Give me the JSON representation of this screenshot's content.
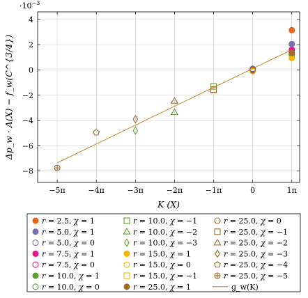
{
  "chart_data": {
    "type": "scatter",
    "xlabel": "K (X)",
    "ylabel": "Δp_w · A(X) − f_w(C^{3/4})",
    "y_exponent_label": "·10",
    "y_exponent_power": "−3",
    "xlim": [
      -5.5,
      1.2
    ],
    "ylim": [
      -8.9,
      4.6
    ],
    "x_ticks": [
      {
        "value": -5,
        "label": "−5π"
      },
      {
        "value": -4,
        "label": "−4π"
      },
      {
        "value": -3,
        "label": "−3π"
      },
      {
        "value": -2,
        "label": "−2π"
      },
      {
        "value": -1,
        "label": "−1π"
      },
      {
        "value": 0,
        "label": "0"
      },
      {
        "value": 1,
        "label": "1π"
      }
    ],
    "y_ticks": [
      {
        "value": -8,
        "label": "−8"
      },
      {
        "value": -6,
        "label": "−6"
      },
      {
        "value": -4,
        "label": "−4"
      },
      {
        "value": -2,
        "label": "−2"
      },
      {
        "value": 0,
        "label": "0"
      },
      {
        "value": 2,
        "label": "2"
      },
      {
        "value": 4,
        "label": "4"
      }
    ],
    "grid": true,
    "legend_position": "below",
    "line": {
      "name": "g_w(K)",
      "x": [
        -5,
        1
      ],
      "y": [
        -7.35,
        1.6
      ],
      "color": "#d08a2a"
    },
    "series": [
      {
        "name": "r = 2.5, χ = 1",
        "marker": "circle",
        "filled": true,
        "color": "#e8651a",
        "x": [
          1
        ],
        "y": [
          3.15
        ]
      },
      {
        "name": "r = 5.0, χ = 1",
        "marker": "circle",
        "filled": true,
        "color": "#7b6fb5",
        "x": [
          1
        ],
        "y": [
          2.05
        ]
      },
      {
        "name": "r = 5.0, χ = 0",
        "marker": "circle",
        "filled": false,
        "color": "#7b6fb5",
        "x": [
          0
        ],
        "y": [
          0.1
        ]
      },
      {
        "name": "r = 7.5, χ = 1",
        "marker": "circle",
        "filled": true,
        "color": "#e6198a",
        "x": [
          1
        ],
        "y": [
          1.6
        ]
      },
      {
        "name": "r = 7.5, χ = 0",
        "marker": "circle",
        "filled": false,
        "color": "#e6198a",
        "x": [
          0
        ],
        "y": [
          0.0
        ]
      },
      {
        "name": "r = 10.0, χ = 1",
        "marker": "circle",
        "filled": true,
        "color": "#5ea12f",
        "x": [
          1
        ],
        "y": [
          1.2
        ]
      },
      {
        "name": "r = 10.0, χ = 0",
        "marker": "circle",
        "filled": false,
        "color": "#5ea12f",
        "x": [
          0
        ],
        "y": [
          -0.05
        ]
      },
      {
        "name": "r = 10.0, χ = −1",
        "marker": "square",
        "filled": false,
        "color": "#5ea12f",
        "x": [
          -1
        ],
        "y": [
          -1.3
        ]
      },
      {
        "name": "r = 10.0, χ = −2",
        "marker": "triangle",
        "filled": false,
        "color": "#5ea12f",
        "x": [
          -2
        ],
        "y": [
          -3.35
        ]
      },
      {
        "name": "r = 10.0, χ = −3",
        "marker": "diamond",
        "filled": false,
        "color": "#5ea12f",
        "x": [
          -3
        ],
        "y": [
          -4.8
        ]
      },
      {
        "name": "r = 15.0, χ = 1",
        "marker": "circle",
        "filled": true,
        "color": "#f2b800",
        "x": [
          1
        ],
        "y": [
          0.95
        ]
      },
      {
        "name": "r = 15.0, χ = 0",
        "marker": "circle",
        "filled": false,
        "color": "#f2b800",
        "x": [
          0
        ],
        "y": [
          -0.1
        ]
      },
      {
        "name": "r = 15.0, χ = −1",
        "marker": "square",
        "filled": false,
        "color": "#f2b800",
        "x": [
          -1
        ],
        "y": [
          -1.6
        ]
      },
      {
        "name": "r = 25.0, χ = 1",
        "marker": "circle",
        "filled": true,
        "color": "#9c6d2c",
        "x": [
          1
        ],
        "y": [
          1.35
        ]
      },
      {
        "name": "r = 25.0, χ = 0",
        "marker": "circle",
        "filled": false,
        "color": "#9c6d2c",
        "x": [
          0
        ],
        "y": [
          0.05
        ]
      },
      {
        "name": "r = 25.0, χ = −1",
        "marker": "square",
        "filled": false,
        "color": "#9c6d2c",
        "x": [
          -1
        ],
        "y": [
          -1.55
        ]
      },
      {
        "name": "r = 25.0, χ = −2",
        "marker": "triangle",
        "filled": false,
        "color": "#9c6d2c",
        "x": [
          -2
        ],
        "y": [
          -2.45
        ]
      },
      {
        "name": "r = 25.0, χ = −3",
        "marker": "diamond",
        "filled": false,
        "color": "#9c6d2c",
        "x": [
          -3
        ],
        "y": [
          -3.9
        ]
      },
      {
        "name": "r = 25.0, χ = −4",
        "marker": "pentagon",
        "filled": false,
        "color": "#9c6d2c",
        "x": [
          -4
        ],
        "y": [
          -4.95
        ]
      },
      {
        "name": "r = 25.0, χ = −5",
        "marker": "oplus",
        "filled": false,
        "color": "#9c6d2c",
        "x": [
          -5
        ],
        "y": [
          -7.75
        ]
      }
    ],
    "legend": [
      {
        "ref": 0,
        "r": "2.5",
        "chi": "1"
      },
      {
        "ref": 1,
        "r": "5.0",
        "chi": "1"
      },
      {
        "ref": 2,
        "r": "5.0",
        "chi": "0"
      },
      {
        "ref": 3,
        "r": "7.5",
        "chi": "1"
      },
      {
        "ref": 4,
        "r": "7.5",
        "chi": "0"
      },
      {
        "ref": 5,
        "r": "10.0",
        "chi": "1"
      },
      {
        "ref": 6,
        "r": "10.0",
        "chi": "0"
      },
      {
        "ref": 7,
        "r": "10.0",
        "chi": "−1"
      },
      {
        "ref": 8,
        "r": "10.0",
        "chi": "−2"
      },
      {
        "ref": 9,
        "r": "10.0",
        "chi": "−3"
      },
      {
        "ref": 10,
        "r": "15.0",
        "chi": "1"
      },
      {
        "ref": 11,
        "r": "15.0",
        "chi": "0"
      },
      {
        "ref": 12,
        "r": "15.0",
        "chi": "−1"
      },
      {
        "ref": 13,
        "r": "25.0",
        "chi": "1"
      },
      {
        "ref": 14,
        "r": "25.0",
        "chi": "0"
      },
      {
        "ref": 15,
        "r": "25.0",
        "chi": "−1"
      },
      {
        "ref": 16,
        "r": "25.0",
        "chi": "−2"
      },
      {
        "ref": 17,
        "r": "25.0",
        "chi": "−3"
      },
      {
        "ref": 18,
        "r": "25.0",
        "chi": "−4"
      },
      {
        "ref": 19,
        "r": "25.0",
        "chi": "−5"
      },
      {
        "ref": "line",
        "label": "g_w(K)"
      }
    ]
  }
}
